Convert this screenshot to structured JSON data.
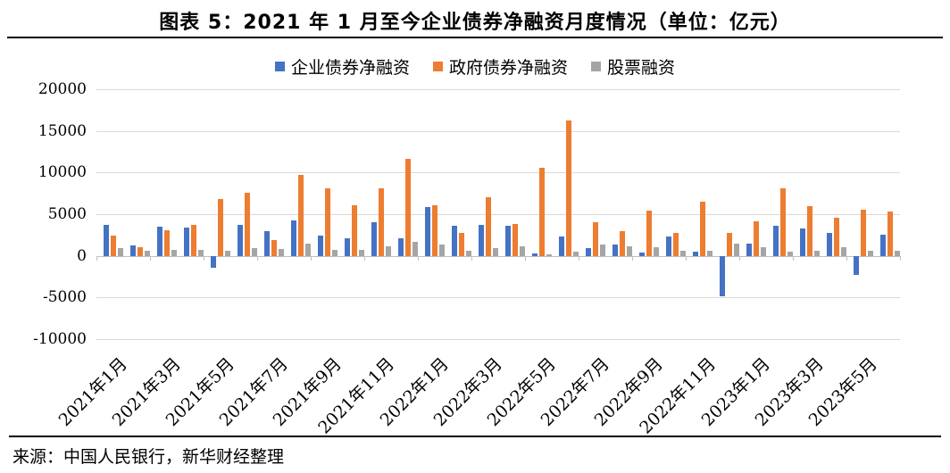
{
  "header": {
    "title": "图表 5：2021 年 1 月至今企业债券净融资月度情况（单位：亿元）"
  },
  "footer": {
    "source": "来源：中国人民银行，新华财经整理"
  },
  "chart_data": {
    "type": "bar",
    "title": "图表 5：2021 年 1 月至今企业债券净融资月度情况（单位：亿元）",
    "unit_label": "亿元",
    "grid": true,
    "legend_position": "top",
    "ylim": [
      -10000,
      20000
    ],
    "yticks": [
      20000,
      15000,
      10000,
      5000,
      0,
      -5000,
      -10000
    ],
    "categories": [
      "2021年1月",
      "2021年2月",
      "2021年3月",
      "2021年4月",
      "2021年5月",
      "2021年6月",
      "2021年7月",
      "2021年8月",
      "2021年9月",
      "2021年10月",
      "2021年11月",
      "2021年12月",
      "2022年1月",
      "2022年2月",
      "2022年3月",
      "2022年4月",
      "2022年5月",
      "2022年6月",
      "2022年7月",
      "2022年8月",
      "2022年9月",
      "2022年10月",
      "2022年11月",
      "2022年12月",
      "2023年1月",
      "2023年2月",
      "2023年3月",
      "2023年4月",
      "2023年5月",
      "2023年6月"
    ],
    "x_tick_labels": [
      "2021年1月",
      "2021年3月",
      "2021年5月",
      "2021年7月",
      "2021年9月",
      "2021年11月",
      "2022年1月",
      "2022年3月",
      "2022年5月",
      "2022年7月",
      "2022年9月",
      "2022年11月",
      "2023年1月",
      "2023年3月",
      "2023年5月"
    ],
    "series": [
      {
        "id": "corporate-bond",
        "name": "企业债券净融资",
        "color": "#4472C4",
        "values": [
          3750,
          1250,
          3500,
          3420,
          -1400,
          3740,
          2930,
          4300,
          2450,
          2150,
          4030,
          2120,
          5860,
          3650,
          3710,
          3600,
          330,
          2300,
          930,
          1350,
          360,
          2270,
          470,
          -4890,
          1470,
          3630,
          3240,
          2770,
          -2260,
          2490
        ]
      },
      {
        "id": "government-bond",
        "name": "政府债券净融资",
        "color": "#ED7D31",
        "values": [
          2400,
          1000,
          3090,
          3700,
          6800,
          7540,
          1850,
          9740,
          8130,
          6040,
          8100,
          11640,
          6040,
          2720,
          7040,
          3870,
          10570,
          16250,
          4030,
          2920,
          5430,
          2700,
          6490,
          2760,
          4160,
          8130,
          5960,
          4540,
          5530,
          5320
        ]
      },
      {
        "id": "stock",
        "name": "股票融资",
        "color": "#A5A5A5",
        "values": [
          930,
          610,
          680,
          720,
          650,
          950,
          840,
          1440,
          720,
          720,
          1190,
          1730,
          1400,
          570,
          930,
          1140,
          220,
          500,
          1400,
          1150,
          1010,
          620,
          650,
          1440,
          1040,
          540,
          580,
          1000,
          640,
          580
        ]
      }
    ]
  }
}
